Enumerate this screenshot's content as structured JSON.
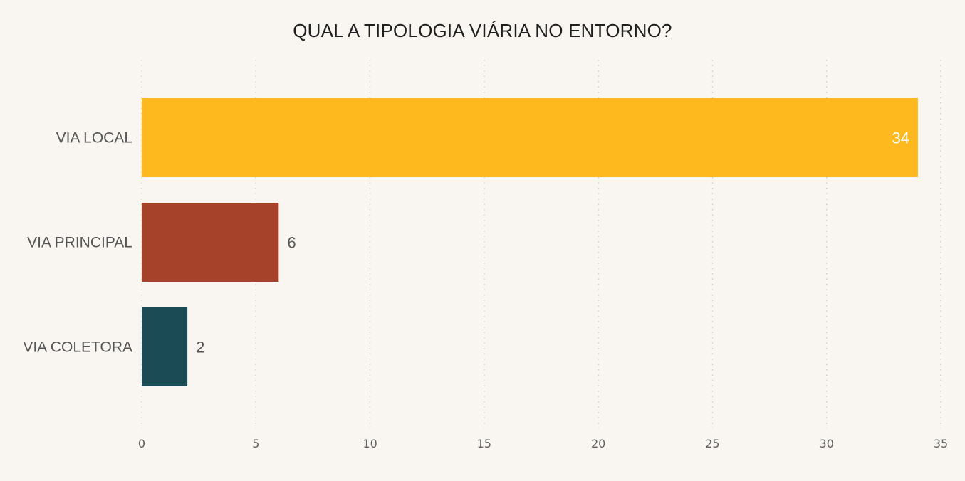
{
  "chart_data": {
    "type": "bar",
    "orientation": "horizontal",
    "title": "QUAL A TIPOLOGIA VIÁRIA NO ENTORNO?",
    "xlabel": "",
    "ylabel": "",
    "categories": [
      "VIA LOCAL",
      "VIA PRINCIPAL",
      "VIA COLETORA"
    ],
    "values": [
      34,
      6,
      2
    ],
    "value_labels": [
      "34",
      "6",
      "2"
    ],
    "colors": [
      "#fdb91d",
      "#a64229",
      "#1b4b54"
    ],
    "value_label_colors": [
      "#ffffff",
      "#555555",
      "#555555"
    ],
    "value_label_inside": [
      true,
      false,
      false
    ],
    "xlim": [
      0,
      35
    ],
    "xticks": [
      0,
      5,
      10,
      15,
      20,
      25,
      30,
      35
    ],
    "xtick_labels": [
      "0",
      "5",
      "10",
      "15",
      "20",
      "25",
      "30",
      "35"
    ],
    "grid": "vertical-dotted",
    "background": "#f9f6f1"
  }
}
